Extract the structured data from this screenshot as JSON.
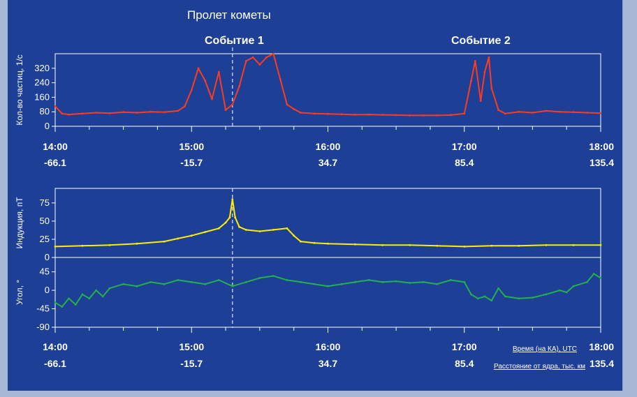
{
  "header": {
    "title": "Пролет кометы",
    "event1": "Событие 1",
    "event2": "Событие 2"
  },
  "colors": {
    "background": "#1d3f96",
    "counts": "#ff3b1f",
    "induction": "#ffee00",
    "angle": "#22b14c",
    "axes": "#ffffff"
  },
  "time_axis": {
    "ticks": [
      "14:00",
      "15:00",
      "16:00",
      "17:00",
      "18:00"
    ],
    "distances": [
      "-66.1",
      "-15.7",
      "34.7",
      "85.4",
      "135.4"
    ],
    "time_caption": "Время (на КА), UTC",
    "distance_caption": "Расстояние от ядра, тыс. км"
  },
  "chart_data": [
    {
      "type": "line",
      "ylabel": "Кол-во частиц, 1/с",
      "yticks": [
        "0",
        "80",
        "160",
        "240",
        "320"
      ],
      "ylim": [
        0,
        400
      ],
      "xlim": [
        14.0,
        18.0
      ],
      "series": [
        {
          "x": [
            14.0,
            14.05,
            14.1,
            14.2,
            14.3,
            14.4,
            14.5,
            14.6,
            14.7,
            14.8,
            14.9,
            14.95,
            15.0,
            15.05,
            15.1,
            15.15,
            15.2,
            15.25,
            15.3,
            15.35,
            15.4,
            15.45,
            15.5,
            15.55,
            15.6,
            15.65,
            15.7,
            15.75,
            15.8,
            15.9,
            16.0,
            16.1,
            16.2,
            16.3,
            16.4,
            16.5,
            16.6,
            16.7,
            16.8,
            16.9,
            17.0,
            17.05,
            17.08,
            17.12,
            17.15,
            17.18,
            17.2,
            17.25,
            17.3,
            17.4,
            17.5,
            17.6,
            17.7,
            17.8,
            17.9,
            18.0
          ],
          "values": [
            110,
            70,
            65,
            70,
            75,
            72,
            78,
            75,
            80,
            78,
            85,
            110,
            200,
            320,
            250,
            150,
            300,
            90,
            120,
            220,
            360,
            380,
            340,
            380,
            400,
            260,
            120,
            95,
            75,
            70,
            68,
            66,
            64,
            65,
            63,
            62,
            60,
            60,
            60,
            62,
            70,
            250,
            360,
            140,
            300,
            380,
            210,
            90,
            70,
            80,
            75,
            85,
            80,
            78,
            75,
            72
          ]
        }
      ]
    },
    {
      "type": "line",
      "ylabel": "Индукция, пТ",
      "yticks": [
        "0",
        "25",
        "50",
        "75"
      ],
      "ylim": [
        0,
        95
      ],
      "xlim": [
        14.0,
        18.0
      ],
      "series": [
        {
          "x": [
            14.0,
            14.2,
            14.4,
            14.6,
            14.8,
            14.9,
            15.0,
            15.1,
            15.2,
            15.25,
            15.28,
            15.3,
            15.32,
            15.35,
            15.4,
            15.5,
            15.6,
            15.7,
            15.75,
            15.8,
            15.9,
            16.0,
            16.2,
            16.4,
            16.6,
            16.8,
            17.0,
            17.2,
            17.4,
            17.6,
            17.8,
            18.0
          ],
          "values": [
            15,
            16,
            17,
            19,
            22,
            26,
            30,
            35,
            40,
            48,
            55,
            80,
            55,
            42,
            38,
            36,
            38,
            40,
            30,
            22,
            20,
            19,
            18,
            17,
            17,
            16,
            15,
            16,
            16,
            17,
            17,
            17
          ]
        }
      ]
    },
    {
      "type": "line",
      "ylabel": "Угол, °",
      "yticks": [
        "-90",
        "-45",
        "0",
        "45"
      ],
      "ylim": [
        -90,
        80
      ],
      "xlim": [
        14.0,
        18.0
      ],
      "series": [
        {
          "x": [
            14.0,
            14.05,
            14.1,
            14.15,
            14.2,
            14.25,
            14.3,
            14.35,
            14.4,
            14.5,
            14.6,
            14.7,
            14.8,
            14.9,
            15.0,
            15.1,
            15.2,
            15.3,
            15.4,
            15.5,
            15.6,
            15.7,
            15.8,
            15.9,
            16.0,
            16.1,
            16.2,
            16.3,
            16.4,
            16.5,
            16.6,
            16.7,
            16.8,
            16.9,
            17.0,
            17.05,
            17.1,
            17.15,
            17.2,
            17.25,
            17.3,
            17.4,
            17.5,
            17.6,
            17.7,
            17.75,
            17.8,
            17.9,
            17.95,
            18.0
          ],
          "values": [
            -30,
            -40,
            -20,
            -35,
            -10,
            -20,
            0,
            -15,
            5,
            15,
            10,
            20,
            15,
            25,
            20,
            15,
            25,
            10,
            20,
            30,
            35,
            25,
            20,
            15,
            10,
            15,
            20,
            25,
            20,
            22,
            18,
            20,
            15,
            25,
            20,
            -10,
            -20,
            -15,
            -25,
            5,
            -15,
            -20,
            -18,
            -10,
            0,
            -5,
            10,
            20,
            40,
            30
          ]
        }
      ]
    }
  ]
}
